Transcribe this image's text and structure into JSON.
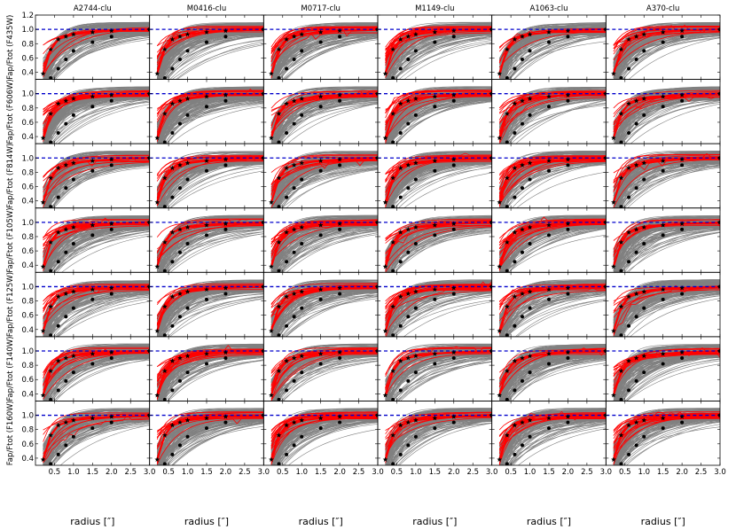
{
  "chart_data": {
    "type": "line",
    "layout": {
      "rows": 7,
      "cols": 6
    },
    "column_titles": [
      "A2744-clu",
      "M0416-clu",
      "M0717-clu",
      "M1149-clu",
      "A1063-clu",
      "A370-clu"
    ],
    "row_ylabels": [
      "Fap/Ftot (F435W)",
      "Fap/Ftot (F606W)",
      "Fap/Ftot (F814W)",
      "Fap/Ftot (F105W)",
      "Fap/Ftot (F125W)",
      "Fap/Ftot (F140W)",
      "Fap/Ftot (F160W)"
    ],
    "xlabel": "radius [″]",
    "xlim": [
      0.0,
      3.0
    ],
    "ylim": [
      0.3,
      1.2
    ],
    "xticks": [
      0.5,
      1.0,
      1.5,
      2.0,
      2.5,
      3.0
    ],
    "xtick_labels": [
      "0.5",
      "1.0",
      "1.5",
      "2.0",
      "2.5",
      "3.0"
    ],
    "yticks": [
      0.4,
      0.6,
      0.8,
      1.0,
      1.2
    ],
    "ytick_labels": [
      "0.4",
      "0.6",
      "0.8",
      "1.0",
      "1.2"
    ],
    "reference_line": {
      "y": 1.0,
      "style": "dashed",
      "color": "#0000cc"
    },
    "series": [
      {
        "role": "reference curve (star markers)",
        "color": "#000000",
        "marker": "star",
        "x": [
          0.2,
          0.4,
          0.6,
          0.8,
          1.0,
          1.5,
          2.0,
          3.0
        ],
        "y": [
          0.38,
          0.72,
          0.86,
          0.9,
          0.93,
          0.96,
          0.98,
          1.0
        ]
      },
      {
        "role": "reference points (dots)",
        "color": "#000000",
        "marker": "circle",
        "x": [
          0.4,
          0.6,
          0.8,
          1.0,
          1.5,
          2.0,
          3.0
        ],
        "y": [
          0.32,
          0.45,
          0.58,
          0.7,
          0.82,
          0.9,
          1.0
        ]
      }
    ],
    "background_curves": {
      "color": "#808080",
      "description": "many individual galaxy growth curves"
    },
    "highlight_curves": {
      "color": "#ff0000",
      "description": "growth curves of selected objects"
    },
    "grid": false,
    "colors": {
      "gray": "#808080",
      "red": "#ff0000",
      "blue": "#0000cc",
      "black": "#000000"
    }
  }
}
